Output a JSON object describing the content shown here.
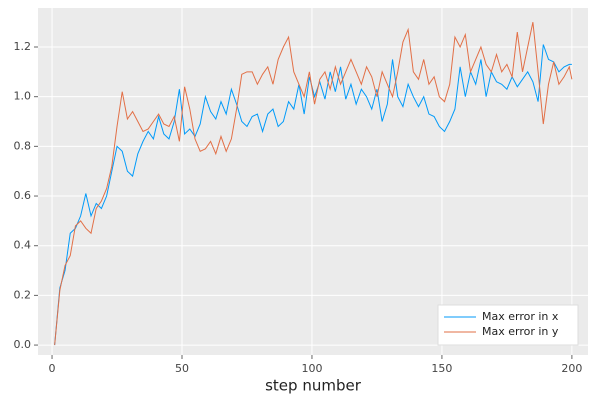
{
  "chart_data": {
    "type": "line",
    "xlabel": "step number",
    "x": [
      1,
      3,
      5,
      7,
      9,
      11,
      13,
      15,
      17,
      19,
      21,
      23,
      25,
      27,
      29,
      31,
      33,
      35,
      37,
      39,
      41,
      43,
      45,
      47,
      49,
      51,
      53,
      55,
      57,
      59,
      61,
      63,
      65,
      67,
      69,
      71,
      73,
      75,
      77,
      79,
      81,
      83,
      85,
      87,
      89,
      91,
      93,
      95,
      97,
      99,
      101,
      103,
      105,
      107,
      109,
      111,
      113,
      115,
      117,
      119,
      121,
      123,
      125,
      127,
      129,
      131,
      133,
      135,
      137,
      139,
      141,
      143,
      145,
      147,
      149,
      151,
      153,
      155,
      157,
      159,
      161,
      163,
      165,
      167,
      169,
      171,
      173,
      175,
      177,
      179,
      181,
      183,
      185,
      187,
      189,
      191,
      193,
      195,
      197,
      199,
      200
    ],
    "series": [
      {
        "name": "Max error in x",
        "color": "#009af9",
        "values": [
          0,
          0.23,
          0.3,
          0.45,
          0.47,
          0.52,
          0.61,
          0.52,
          0.57,
          0.55,
          0.6,
          0.7,
          0.8,
          0.78,
          0.7,
          0.68,
          0.77,
          0.82,
          0.86,
          0.83,
          0.92,
          0.85,
          0.83,
          0.9,
          1.03,
          0.85,
          0.87,
          0.84,
          0.89,
          1.0,
          0.94,
          0.91,
          0.98,
          0.93,
          1.03,
          0.97,
          0.9,
          0.88,
          0.92,
          0.93,
          0.86,
          0.93,
          0.95,
          0.88,
          0.9,
          0.98,
          0.95,
          1.05,
          0.93,
          1.08,
          1.0,
          1.06,
          0.99,
          1.1,
          1.02,
          1.12,
          0.99,
          1.05,
          0.97,
          1.03,
          1.0,
          0.95,
          1.03,
          0.9,
          0.97,
          1.15,
          1.0,
          0.96,
          1.05,
          1.0,
          0.96,
          1.0,
          0.93,
          0.92,
          0.88,
          0.86,
          0.9,
          0.95,
          1.12,
          1.0,
          1.1,
          1.05,
          1.15,
          1.0,
          1.1,
          1.06,
          1.05,
          1.03,
          1.08,
          1.04,
          1.07,
          1.1,
          1.06,
          0.98,
          1.21,
          1.15,
          1.14,
          1.1,
          1.12,
          1.13,
          1.13
        ]
      },
      {
        "name": "Max error in y",
        "color": "#e26f46",
        "values": [
          0,
          0.22,
          0.32,
          0.36,
          0.48,
          0.5,
          0.47,
          0.45,
          0.55,
          0.58,
          0.63,
          0.72,
          0.88,
          1.02,
          0.91,
          0.94,
          0.9,
          0.86,
          0.87,
          0.9,
          0.93,
          0.89,
          0.88,
          0.92,
          0.82,
          1.04,
          0.95,
          0.83,
          0.78,
          0.79,
          0.82,
          0.77,
          0.84,
          0.78,
          0.83,
          0.95,
          1.09,
          1.1,
          1.1,
          1.05,
          1.09,
          1.12,
          1.05,
          1.15,
          1.2,
          1.24,
          1.1,
          1.05,
          1.0,
          1.1,
          0.97,
          1.07,
          1.1,
          1.03,
          1.12,
          1.05,
          1.1,
          1.15,
          1.1,
          1.05,
          1.12,
          1.08,
          1.0,
          1.1,
          1.05,
          1.0,
          1.1,
          1.22,
          1.27,
          1.1,
          1.07,
          1.15,
          1.05,
          1.08,
          1.0,
          0.98,
          1.05,
          1.24,
          1.2,
          1.25,
          1.1,
          1.15,
          1.2,
          1.13,
          1.1,
          1.17,
          1.1,
          1.13,
          1.08,
          1.26,
          1.1,
          1.2,
          1.3,
          1.1,
          0.89,
          1.05,
          1.14,
          1.05,
          1.08,
          1.12,
          1.07
        ]
      }
    ],
    "xlim": [
      -5.4,
      206.2
    ],
    "ylim": [
      -0.04,
      1.357
    ],
    "xticks": [
      0,
      50,
      100,
      150,
      200
    ],
    "yticks": [
      {
        "value": 0,
        "label": "0.0"
      },
      {
        "value": 0.2,
        "label": "0.2"
      },
      {
        "value": 0.4,
        "label": "0.4"
      },
      {
        "value": 0.6,
        "label": "0.6"
      },
      {
        "value": 0.8,
        "label": "0.8"
      },
      {
        "value": 1.0,
        "label": "1.0"
      },
      {
        "value": 1.2,
        "label": "1.2"
      }
    ],
    "grid": true,
    "legend": "lower right"
  }
}
